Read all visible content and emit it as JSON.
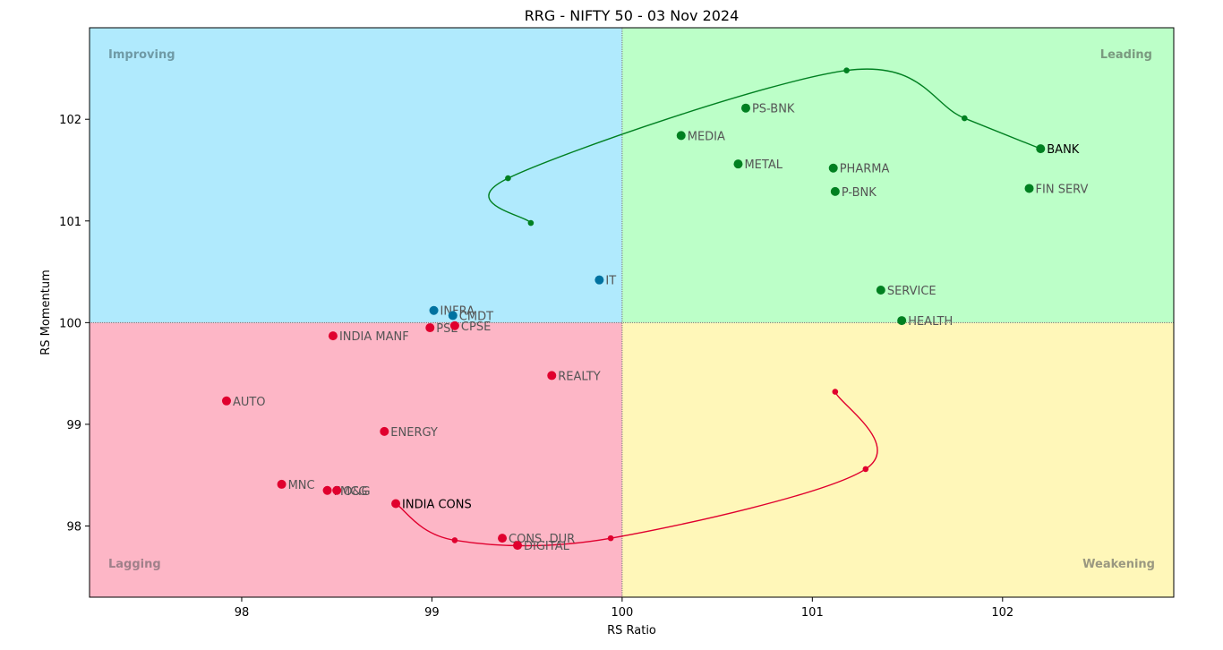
{
  "chart_data": {
    "type": "scatter",
    "title": "RRG - NIFTY 50 - 03 Nov 2024",
    "xlabel": "RS Ratio",
    "ylabel": "RS Momentum",
    "xlim": [
      97.2,
      102.9
    ],
    "ylim": [
      97.3,
      102.9
    ],
    "xticks": [
      98,
      99,
      100,
      101,
      102
    ],
    "yticks": [
      98,
      99,
      100,
      101,
      102
    ],
    "center": [
      100,
      100
    ],
    "quadrants": [
      {
        "name": "Improving",
        "color": "#b0eafd",
        "label_color": "#6f9aa6",
        "position": "top-left"
      },
      {
        "name": "Leading",
        "color": "#bcffc8",
        "label_color": "#7a9a7f",
        "position": "top-right"
      },
      {
        "name": "Lagging",
        "color": "#fdb6c6",
        "label_color": "#a0808a",
        "position": "bottom-left"
      },
      {
        "name": "Weakening",
        "color": "#fff7b9",
        "label_color": "#9a9880",
        "position": "bottom-right"
      }
    ],
    "colors": {
      "leading": "#008021",
      "improving": "#0072a0",
      "lagging": "#e0002e",
      "weakening": "#e0002e"
    },
    "points": [
      {
        "name": "PS-BNK",
        "x": 100.65,
        "y": 102.11,
        "color": "#008021"
      },
      {
        "name": "MEDIA",
        "x": 100.31,
        "y": 101.84,
        "color": "#008021"
      },
      {
        "name": "METAL",
        "x": 100.61,
        "y": 101.56,
        "color": "#008021"
      },
      {
        "name": "PHARMA",
        "x": 101.11,
        "y": 101.52,
        "color": "#008021"
      },
      {
        "name": "P-BNK",
        "x": 101.12,
        "y": 101.29,
        "color": "#008021"
      },
      {
        "name": "FIN SERV",
        "x": 102.14,
        "y": 101.32,
        "color": "#008021"
      },
      {
        "name": "SERVICE",
        "x": 101.36,
        "y": 100.32,
        "color": "#008021"
      },
      {
        "name": "HEALTH",
        "x": 101.47,
        "y": 100.02,
        "color": "#008021"
      },
      {
        "name": "IT",
        "x": 99.88,
        "y": 100.42,
        "color": "#0072a0"
      },
      {
        "name": "INFRA",
        "x": 99.01,
        "y": 100.12,
        "color": "#0072a0"
      },
      {
        "name": "CMDT",
        "x": 99.11,
        "y": 100.07,
        "color": "#0072a0"
      },
      {
        "name": "PSE",
        "x": 98.99,
        "y": 99.95,
        "color": "#e0002e"
      },
      {
        "name": "CPSE",
        "x": 99.12,
        "y": 99.97,
        "color": "#e0002e"
      },
      {
        "name": "INDIA MANF",
        "x": 98.48,
        "y": 99.87,
        "color": "#e0002e"
      },
      {
        "name": "REALTY",
        "x": 99.63,
        "y": 99.48,
        "color": "#e0002e"
      },
      {
        "name": "AUTO",
        "x": 97.92,
        "y": 99.23,
        "color": "#e0002e"
      },
      {
        "name": "ENERGY",
        "x": 98.75,
        "y": 98.93,
        "color": "#e0002e"
      },
      {
        "name": "MNC",
        "x": 98.21,
        "y": 98.41,
        "color": "#e0002e"
      },
      {
        "name": "FMCG",
        "x": 98.45,
        "y": 98.35,
        "color": "#e0002e"
      },
      {
        "name": "O&G",
        "x": 98.5,
        "y": 98.35,
        "color": "#e0002e"
      },
      {
        "name": "CONS. DUR",
        "x": 99.37,
        "y": 97.88,
        "color": "#e0002e"
      },
      {
        "name": "DIGITAL",
        "x": 99.45,
        "y": 97.81,
        "color": "#e0002e"
      }
    ],
    "trails": [
      {
        "name": "BANK",
        "color": "#008021",
        "points": [
          [
            99.52,
            100.98
          ],
          [
            99.4,
            101.42
          ],
          [
            101.18,
            102.48
          ],
          [
            101.8,
            102.01
          ],
          [
            102.2,
            101.71
          ]
        ]
      },
      {
        "name": "INDIA CONS",
        "color": "#e0002e",
        "points": [
          [
            101.12,
            99.32
          ],
          [
            101.28,
            98.56
          ],
          [
            99.94,
            97.88
          ],
          [
            99.12,
            97.86
          ],
          [
            98.81,
            98.22
          ]
        ]
      }
    ]
  }
}
